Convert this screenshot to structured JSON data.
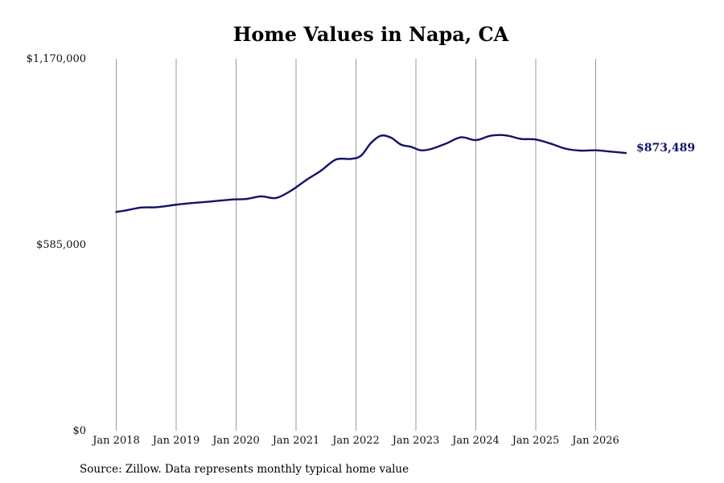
{
  "chart_data": {
    "type": "line",
    "title": "Home Values in Napa, CA",
    "xlabel": "",
    "ylabel": "",
    "ylim": [
      0,
      1170000
    ],
    "yticks": [
      {
        "value": 0,
        "label": "$0"
      },
      {
        "value": 585000,
        "label": "$585,000"
      },
      {
        "value": 1170000,
        "label": "$1,170,000"
      }
    ],
    "x_range": [
      "2018-01",
      "2026-07"
    ],
    "xticks": [
      {
        "date": "2018-01",
        "label": "Jan 2018"
      },
      {
        "date": "2019-01",
        "label": "Jan 2019"
      },
      {
        "date": "2020-01",
        "label": "Jan 2020"
      },
      {
        "date": "2021-01",
        "label": "Jan 2021"
      },
      {
        "date": "2022-01",
        "label": "Jan 2022"
      },
      {
        "date": "2023-01",
        "label": "Jan 2023"
      },
      {
        "date": "2024-01",
        "label": "Jan 2024"
      },
      {
        "date": "2025-01",
        "label": "Jan 2025"
      },
      {
        "date": "2026-01",
        "label": "Jan 2026"
      }
    ],
    "grid": "vertical",
    "series": [
      {
        "color": "#12126b",
        "points": [
          {
            "x": "2018-01",
            "y": 688000
          },
          {
            "x": "2018-03",
            "y": 693000
          },
          {
            "x": "2018-06",
            "y": 702000
          },
          {
            "x": "2018-09",
            "y": 703000
          },
          {
            "x": "2019-01",
            "y": 711000
          },
          {
            "x": "2019-04",
            "y": 716000
          },
          {
            "x": "2019-08",
            "y": 721000
          },
          {
            "x": "2019-12",
            "y": 727000
          },
          {
            "x": "2020-03",
            "y": 729000
          },
          {
            "x": "2020-06",
            "y": 737000
          },
          {
            "x": "2020-09",
            "y": 732000
          },
          {
            "x": "2020-12",
            "y": 755000
          },
          {
            "x": "2021-03",
            "y": 788000
          },
          {
            "x": "2021-06",
            "y": 818000
          },
          {
            "x": "2021-09",
            "y": 853000
          },
          {
            "x": "2021-12",
            "y": 855000
          },
          {
            "x": "2022-02",
            "y": 865000
          },
          {
            "x": "2022-04",
            "y": 905000
          },
          {
            "x": "2022-06",
            "y": 928000
          },
          {
            "x": "2022-08",
            "y": 922000
          },
          {
            "x": "2022-10",
            "y": 900000
          },
          {
            "x": "2022-12",
            "y": 893000
          },
          {
            "x": "2023-02",
            "y": 882000
          },
          {
            "x": "2023-04",
            "y": 886000
          },
          {
            "x": "2023-07",
            "y": 903000
          },
          {
            "x": "2023-10",
            "y": 923000
          },
          {
            "x": "2024-01",
            "y": 914000
          },
          {
            "x": "2024-04",
            "y": 928000
          },
          {
            "x": "2024-07",
            "y": 929000
          },
          {
            "x": "2024-10",
            "y": 918000
          },
          {
            "x": "2025-01",
            "y": 916000
          },
          {
            "x": "2025-04",
            "y": 903000
          },
          {
            "x": "2025-07",
            "y": 887000
          },
          {
            "x": "2025-10",
            "y": 881000
          },
          {
            "x": "2026-01",
            "y": 882000
          },
          {
            "x": "2026-04",
            "y": 878000
          },
          {
            "x": "2026-07",
            "y": 873489
          }
        ]
      }
    ],
    "last_value_label": "$873,489",
    "source_note": "Source: Zillow. Data represents monthly typical home value"
  }
}
